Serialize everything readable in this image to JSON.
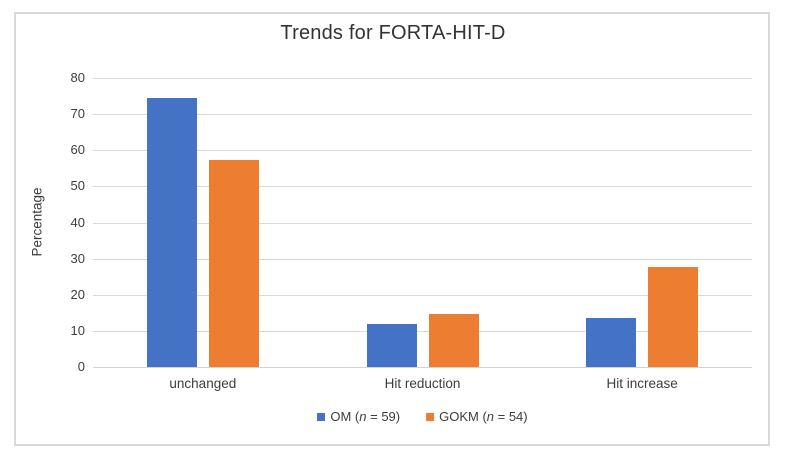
{
  "chart_data": {
    "type": "bar",
    "title": "Trends for FORTA-HIT-D",
    "ylabel": "Percentage",
    "xlabel": "",
    "categories": [
      "unchanged",
      "Hit reduction",
      "Hit increase"
    ],
    "series": [
      {
        "name": "OM",
        "n": "59",
        "legend_pre": "OM (",
        "legend_n": "n",
        "legend_post": " = 59)",
        "color": "#4472C4",
        "values": [
          74.6,
          11.9,
          13.6
        ]
      },
      {
        "name": "GOKM",
        "n": "54",
        "legend_pre": "GOKM (",
        "legend_n": "n",
        "legend_post": " = 54)",
        "color": "#ED7D31",
        "values": [
          57.4,
          14.8,
          27.8
        ]
      }
    ],
    "ylim": [
      0,
      80
    ],
    "ytick_step": 10,
    "yticks": [
      0,
      10,
      20,
      30,
      40,
      50,
      60,
      70,
      80
    ],
    "grid": true,
    "legend_position": "bottom",
    "colors": {
      "grid": "#d9d9d9",
      "axis": "#d2d2d2",
      "text": "#3d3d3d",
      "frame_border": "#d9d9d9",
      "background": "#ffffff"
    }
  }
}
